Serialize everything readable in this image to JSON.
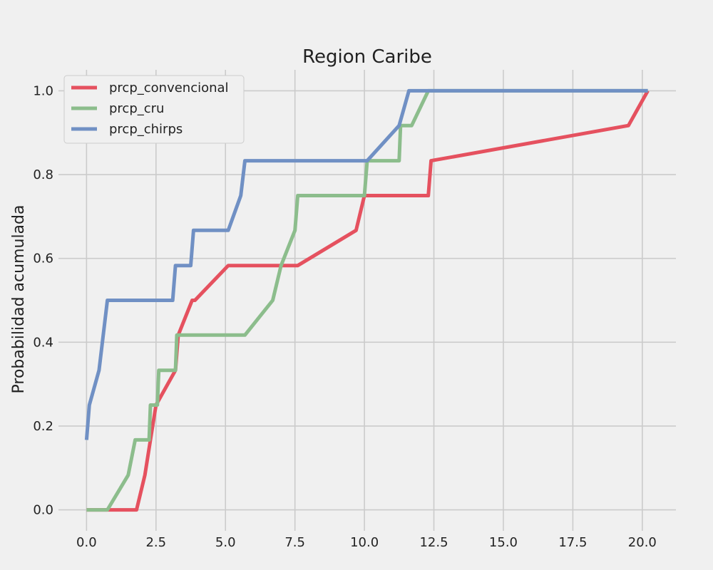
{
  "chart_data": {
    "type": "line",
    "title": "Region Caribe",
    "xlabel": "",
    "ylabel": "Probabilidad acumulada",
    "xlim": [
      -1.01,
      21.21
    ],
    "ylim": [
      -0.05,
      1.05
    ],
    "xticks": [
      0.0,
      2.5,
      5.0,
      7.5,
      10.0,
      12.5,
      15.0,
      17.5,
      20.0
    ],
    "xtick_labels": [
      "0.0",
      "2.5",
      "5.0",
      "7.5",
      "10.0",
      "12.5",
      "15.0",
      "17.5",
      "20.0"
    ],
    "yticks": [
      0.0,
      0.2,
      0.4,
      0.6,
      0.8,
      1.0
    ],
    "ytick_labels": [
      "0.0",
      "0.2",
      "0.4",
      "0.6",
      "0.8",
      "1.0"
    ],
    "grid": true,
    "legend_position": "upper left",
    "series": [
      {
        "name": "prcp_convencional",
        "color": "#e5515f",
        "x": [
          0.0,
          1.8,
          2.1,
          2.3,
          2.5,
          3.2,
          3.3,
          3.8,
          3.9,
          5.1,
          7.6,
          9.7,
          10.0,
          12.3,
          12.4,
          19.5,
          20.2
        ],
        "y": [
          0.0,
          0.0,
          0.083,
          0.167,
          0.25,
          0.333,
          0.417,
          0.5,
          0.5,
          0.583,
          0.583,
          0.667,
          0.75,
          0.75,
          0.833,
          0.917,
          1.0
        ]
      },
      {
        "name": "prcp_cru",
        "color": "#8cbd8c",
        "x": [
          0.0,
          0.75,
          1.5,
          1.75,
          2.25,
          2.3,
          2.55,
          2.6,
          3.2,
          3.25,
          5.7,
          6.7,
          7.0,
          7.5,
          7.6,
          10.0,
          10.1,
          11.25,
          11.3,
          11.7,
          12.3,
          20.2
        ],
        "y": [
          0.0,
          0.0,
          0.083,
          0.167,
          0.167,
          0.25,
          0.25,
          0.333,
          0.333,
          0.417,
          0.417,
          0.5,
          0.583,
          0.667,
          0.75,
          0.75,
          0.833,
          0.833,
          0.917,
          0.917,
          1.0,
          1.0
        ]
      },
      {
        "name": "prcp_chirps",
        "color": "#7090c4",
        "x": [
          0.0,
          0.1,
          0.45,
          0.75,
          3.1,
          3.2,
          3.75,
          3.85,
          5.1,
          5.55,
          5.7,
          10.1,
          11.25,
          11.6,
          20.2
        ],
        "y": [
          0.167,
          0.25,
          0.333,
          0.5,
          0.5,
          0.583,
          0.583,
          0.667,
          0.667,
          0.75,
          0.833,
          0.833,
          0.917,
          1.0,
          1.0
        ]
      }
    ]
  }
}
